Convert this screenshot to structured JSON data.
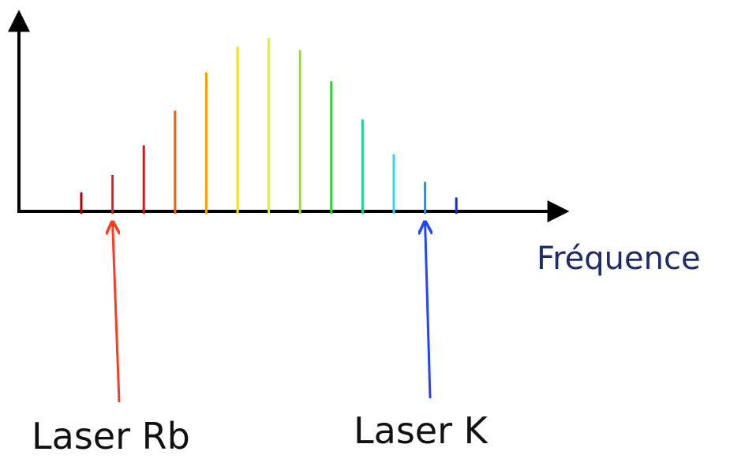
{
  "axis": {
    "x_label": "Fréquence"
  },
  "lasers": [
    {
      "label": "Laser Rb",
      "target_line": 1,
      "color": "#ff3b1f"
    },
    {
      "label": "Laser K",
      "target_line": 11,
      "color": "#1f45ff"
    }
  ],
  "spectrum": {
    "relative_heights": [
      0.11,
      0.21,
      0.38,
      0.58,
      0.8,
      0.95,
      1.0,
      0.93,
      0.75,
      0.53,
      0.33,
      0.17,
      0.08
    ],
    "colors": [
      "#b00000",
      "#d42a1a",
      "#e81010",
      "#f06010",
      "#f5a000",
      "#f8e000",
      "#e8f020",
      "#90e030",
      "#30d030",
      "#20d090",
      "#30d8f0",
      "#2090f0",
      "#1030d0"
    ]
  }
}
